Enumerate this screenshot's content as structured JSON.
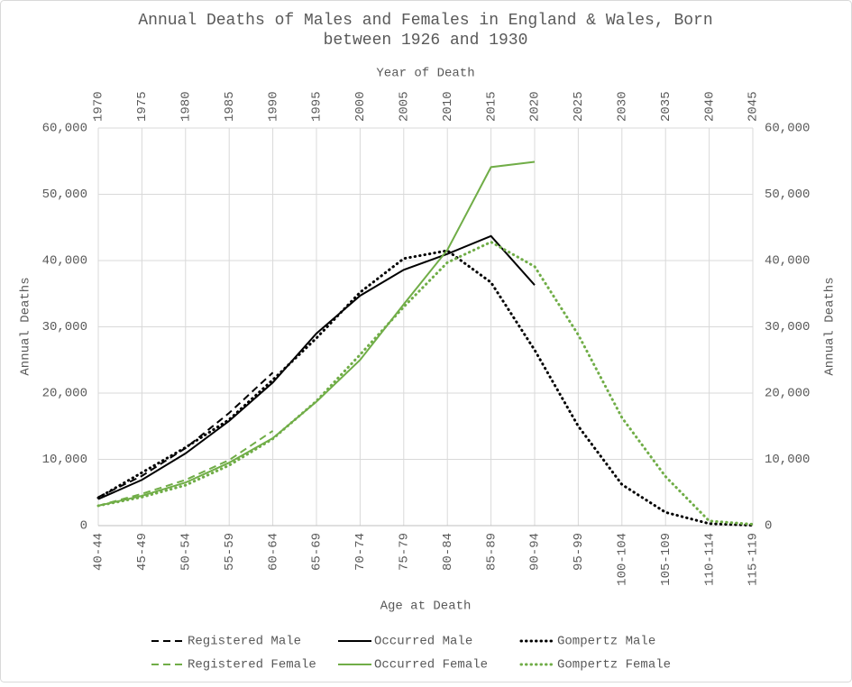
{
  "chart_data": {
    "type": "line",
    "title": "Annual Deaths of Males and Females in England & Wales, Born between 1926 and 1930",
    "title_lines": [
      "Annual Deaths of Males and Females in England & Wales, Born",
      "between 1926 and 1930"
    ],
    "x_label": "Age at Death",
    "x2_label": "Year of Death",
    "y_label": "Annual Deaths",
    "y2_label": "Annual Deaths",
    "categories": [
      "40-44",
      "45-49",
      "50-54",
      "55-59",
      "60-64",
      "65-69",
      "70-74",
      "75-79",
      "80-84",
      "85-89",
      "90-94",
      "95-99",
      "100-104",
      "105-109",
      "110-114",
      "115-119"
    ],
    "x2_categories": [
      "1970",
      "1975",
      "1980",
      "1985",
      "1990",
      "1995",
      "2000",
      "2005",
      "2010",
      "2015",
      "2020",
      "2025",
      "2030",
      "2035",
      "2040",
      "2045"
    ],
    "ylim": [
      0,
      60000
    ],
    "yticks": [
      0,
      {
        "value": 10000,
        "label": "10,000"
      },
      {
        "value": 20000,
        "label": "20,000"
      },
      {
        "value": 30000,
        "label": "30,000"
      },
      {
        "value": 40000,
        "label": "40,000"
      },
      {
        "value": 50000,
        "label": "50,000"
      },
      {
        "value": 60000,
        "label": "60,000"
      }
    ],
    "y2lim": [
      0,
      60000
    ],
    "y2ticks": [
      0,
      {
        "value": 10000,
        "label": "10,000"
      },
      {
        "value": 20000,
        "label": "20,000"
      },
      {
        "value": 30000,
        "label": "30,000"
      },
      {
        "value": 40000,
        "label": "40,000"
      },
      {
        "value": 50000,
        "label": "50,000"
      },
      {
        "value": 60000,
        "label": "60,000"
      }
    ],
    "grid": true,
    "legend": "bottom",
    "series": [
      {
        "name": "Registered Male",
        "color": "#000000",
        "dash": "dashed",
        "values": [
          4300,
          7500,
          11700,
          17000,
          23100,
          null,
          null,
          null,
          null,
          null,
          null,
          null,
          null,
          null,
          null,
          null
        ]
      },
      {
        "name": "Occurred Male",
        "color": "#000000",
        "dash": "solid",
        "values": [
          4000,
          6900,
          10900,
          15800,
          21600,
          29000,
          34700,
          38600,
          41000,
          43700,
          36300,
          null,
          null,
          null,
          null,
          null
        ]
      },
      {
        "name": "Gompertz Male",
        "color": "#000000",
        "dash": "dotted",
        "values": [
          4200,
          8000,
          11800,
          16000,
          22000,
          28300,
          35200,
          40300,
          41500,
          36700,
          26500,
          15000,
          6200,
          2000,
          300,
          50
        ]
      },
      {
        "name": "Registered Female",
        "color": "#70ad47",
        "dash": "dashed",
        "values": [
          3000,
          4800,
          6900,
          9900,
          14300,
          null,
          null,
          null,
          null,
          null,
          null,
          null,
          null,
          null,
          null,
          null
        ]
      },
      {
        "name": "Occurred Female",
        "color": "#70ad47",
        "dash": "solid",
        "values": [
          3000,
          4500,
          6500,
          9500,
          13200,
          18700,
          25000,
          33400,
          41600,
          54100,
          54900,
          null,
          null,
          null,
          null,
          null
        ]
      },
      {
        "name": "Gompertz Female",
        "color": "#70ad47",
        "dash": "dotted",
        "values": [
          3000,
          4300,
          6100,
          9100,
          13100,
          18800,
          25800,
          33000,
          39700,
          42800,
          39100,
          28800,
          16300,
          7400,
          700,
          200
        ]
      }
    ]
  }
}
